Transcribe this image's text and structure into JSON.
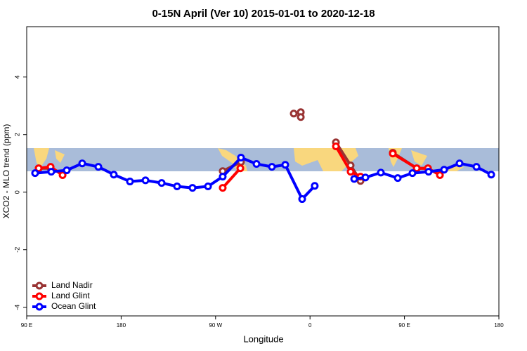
{
  "chart_data": {
    "type": "line",
    "title": "0-15N April (Ver 10)   2015-01-01 to 2020-12-18",
    "x_label": "Longitude",
    "y_label": "XCO2 - MLO trend (ppm)",
    "xlim": [
      90,
      540
    ],
    "ylim": [
      -4.3,
      5.75
    ],
    "xticks": [
      {
        "value": 90,
        "label": "90 E"
      },
      180,
      {
        "value": 270,
        "label": "90 W"
      },
      {
        "value": 360,
        "label": "0"
      },
      {
        "value": 450,
        "label": "90 E"
      },
      {
        "value": 540,
        "label": "180"
      }
    ],
    "yticks": [
      -4,
      -2,
      0,
      2,
      4
    ],
    "legend": "bottom-left",
    "series": [
      {
        "name": "Land Nadir",
        "color": "#993333",
        "x": [
          101.4,
          112.8,
          200,
          276.8,
          294.2,
          320,
          344.5,
          348,
          351.2,
          351.2,
          370,
          384.7,
          398.7,
          408.1,
          420,
          438.9,
          461.7,
          472.4
        ],
        "values": [
          0.83,
          0.83,
          null,
          0.73,
          1.05,
          null,
          2.73,
          null,
          2.78,
          2.61,
          null,
          1.73,
          0.93,
          0.39,
          null,
          1.37,
          0.83,
          0.83
        ]
      },
      {
        "name": "Land Glint",
        "color": "#ff0000",
        "x": [
          101.4,
          112.8,
          124.2,
          200,
          276.8,
          293.6,
          340,
          384.7,
          398.7,
          408.1,
          420,
          438.9,
          461.7,
          472.4,
          483.8
        ],
        "values": [
          0.83,
          0.88,
          0.59,
          null,
          0.15,
          0.83,
          null,
          1.59,
          0.71,
          0.54,
          null,
          1.34,
          0.83,
          0.83,
          0.59
        ]
      },
      {
        "name": "Ocean Glint",
        "color": "#0000ff",
        "x": [
          98,
          113.4,
          128.2,
          142.9,
          158.3,
          173,
          188.4,
          203.2,
          218.6,
          233.3,
          248,
          262.8,
          276.8,
          294.2,
          309,
          323.7,
          336.4,
          352.5,
          364.5,
          383,
          402.1,
          412.8,
          427.5,
          443.6,
          457.6,
          473,
          487.8,
          502.5,
          518.6,
          532.7
        ],
        "values": [
          0.66,
          0.71,
          0.76,
          1.0,
          0.88,
          0.61,
          0.37,
          0.41,
          0.32,
          0.2,
          0.15,
          0.2,
          0.54,
          1.2,
          0.98,
          0.88,
          0.95,
          -0.24,
          0.22,
          null,
          0.46,
          0.51,
          0.68,
          0.49,
          0.66,
          0.71,
          0.78,
          1.0,
          0.88,
          0.61
        ]
      }
    ]
  }
}
